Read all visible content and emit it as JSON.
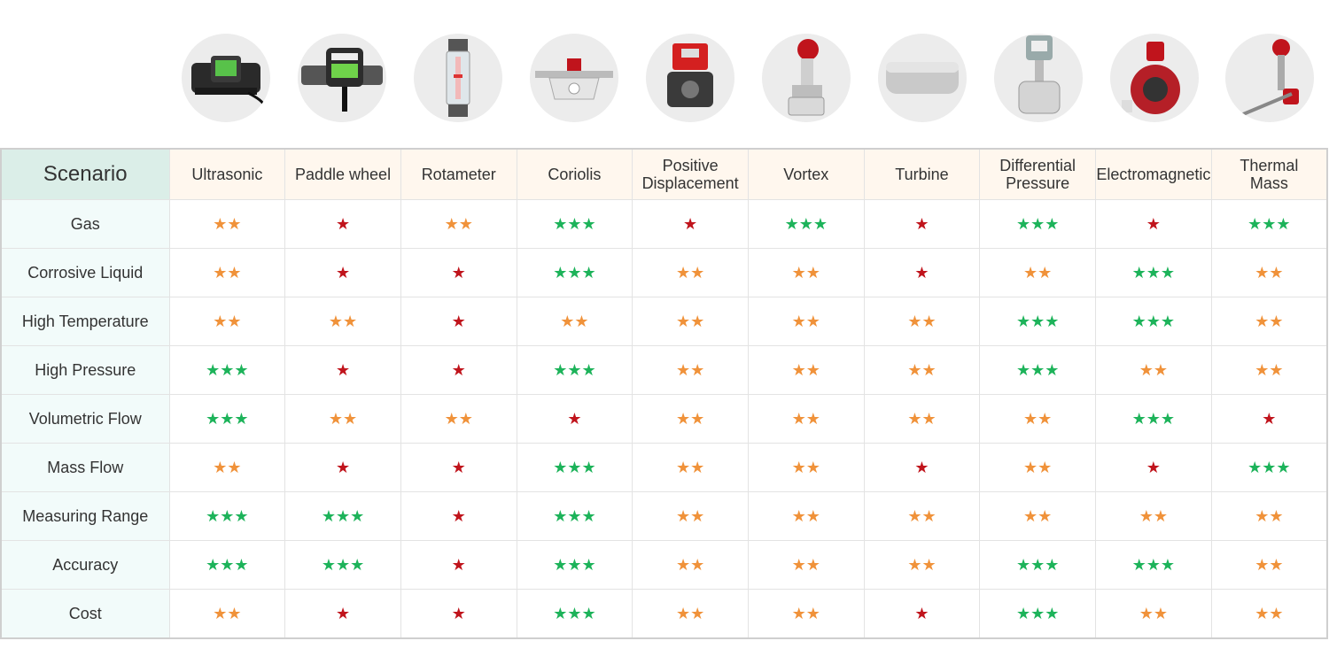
{
  "colors": {
    "three": "#1db35a",
    "two": "#f0923a",
    "one": "#c0141c",
    "corner_bg": "#dbeee8",
    "header_bg": "#fff7ee",
    "rowlabel_bg": "#f2fbfa"
  },
  "table": {
    "corner": "Scenario",
    "columns": [
      {
        "label": "Ultrasonic",
        "icon": "ultrasonic-meter-icon"
      },
      {
        "label": "Paddle wheel",
        "icon": "paddle-wheel-meter-icon"
      },
      {
        "label": "Rotameter",
        "icon": "rotameter-icon"
      },
      {
        "label": "Coriolis",
        "icon": "coriolis-meter-icon"
      },
      {
        "label": "Positive\nDisplacement",
        "icon": "positive-displacement-meter-icon"
      },
      {
        "label": "Vortex",
        "icon": "vortex-meter-icon"
      },
      {
        "label": "Turbine",
        "icon": "turbine-meter-icon"
      },
      {
        "label": "Differential\nPressure",
        "icon": "differential-pressure-meter-icon"
      },
      {
        "label": "Electromagnetic",
        "icon": "electromagnetic-meter-icon"
      },
      {
        "label": "Thermal\nMass",
        "icon": "thermal-mass-meter-icon"
      }
    ],
    "rows": [
      {
        "label": "Gas",
        "ratings": [
          2,
          1,
          2,
          3,
          1,
          3,
          1,
          3,
          1,
          3
        ]
      },
      {
        "label": "Corrosive Liquid",
        "ratings": [
          2,
          1,
          1,
          3,
          2,
          2,
          1,
          2,
          3,
          2
        ]
      },
      {
        "label": "High Temperature",
        "ratings": [
          2,
          2,
          1,
          2,
          2,
          2,
          2,
          3,
          3,
          2
        ]
      },
      {
        "label": "High Pressure",
        "ratings": [
          3,
          1,
          1,
          3,
          2,
          2,
          2,
          3,
          2,
          2
        ]
      },
      {
        "label": "Volumetric Flow",
        "ratings": [
          3,
          2,
          2,
          1,
          2,
          2,
          2,
          2,
          3,
          1
        ]
      },
      {
        "label": "Mass Flow",
        "ratings": [
          2,
          1,
          1,
          3,
          2,
          2,
          1,
          2,
          1,
          3
        ]
      },
      {
        "label": "Measuring Range",
        "ratings": [
          3,
          3,
          1,
          3,
          2,
          2,
          2,
          2,
          2,
          2
        ]
      },
      {
        "label": "Accuracy",
        "ratings": [
          3,
          3,
          1,
          3,
          2,
          2,
          2,
          3,
          3,
          2
        ]
      },
      {
        "label": "Cost",
        "ratings": [
          2,
          1,
          1,
          3,
          2,
          2,
          1,
          3,
          2,
          2
        ]
      }
    ]
  }
}
